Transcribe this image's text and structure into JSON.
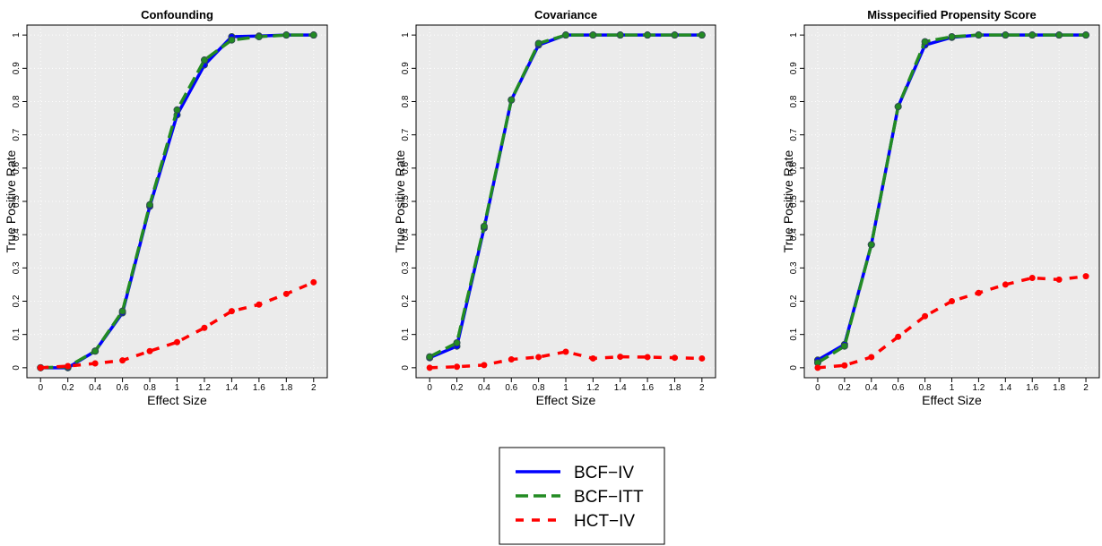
{
  "chart_data": [
    {
      "type": "line",
      "title": "Confounding",
      "xlabel": "Effect Size",
      "ylabel": "True Positive Rate",
      "x": [
        0,
        0.2,
        0.4,
        0.6,
        0.8,
        1,
        1.2,
        1.4,
        1.6,
        1.8,
        2
      ],
      "series": [
        {
          "name": "BCF−IV",
          "color": "#0000ff",
          "linestyle": "solid",
          "values": [
            0,
            0,
            0.05,
            0.165,
            0.485,
            0.76,
            0.91,
            0.995,
            0.997,
            1,
            1
          ]
        },
        {
          "name": "BCF−ITT",
          "color": "#228b22",
          "linestyle": "longdash",
          "values": [
            0,
            0.003,
            0.05,
            0.17,
            0.49,
            0.775,
            0.925,
            0.985,
            0.995,
            1,
            1
          ]
        },
        {
          "name": "HCT−IV",
          "color": "#ff0000",
          "linestyle": "dashed",
          "values": [
            0,
            0.005,
            0.013,
            0.022,
            0.05,
            0.077,
            0.12,
            0.17,
            0.19,
            0.222,
            0.257
          ]
        }
      ],
      "xlim": [
        -0.1,
        2.1
      ],
      "ylim": [
        -0.03,
        1.03
      ],
      "xticks": [
        0,
        0.2,
        0.4,
        0.6,
        0.8,
        1,
        1.2,
        1.4,
        1.6,
        1.8,
        2
      ],
      "yticks": [
        0,
        0.1,
        0.2,
        0.3,
        0.4,
        0.5,
        0.6,
        0.7,
        0.8,
        0.9,
        1
      ],
      "grid": true
    },
    {
      "type": "line",
      "title": "Covariance",
      "xlabel": "Effect Size",
      "ylabel": "True Positive Rate",
      "x": [
        0,
        0.2,
        0.4,
        0.6,
        0.8,
        1,
        1.2,
        1.4,
        1.6,
        1.8,
        2
      ],
      "series": [
        {
          "color": "#0000ff",
          "linestyle": "solid",
          "values": [
            0.03,
            0.065,
            0.42,
            0.805,
            0.97,
            1,
            1,
            1,
            1,
            1,
            1
          ]
        },
        {
          "color": "#228b22",
          "linestyle": "longdash",
          "values": [
            0.033,
            0.075,
            0.425,
            0.805,
            0.975,
            1,
            1,
            1,
            1,
            1,
            1
          ]
        },
        {
          "color": "#ff0000",
          "linestyle": "dashed",
          "values": [
            0,
            0.003,
            0.008,
            0.025,
            0.032,
            0.048,
            0.028,
            0.033,
            0.032,
            0.03,
            0.028
          ]
        }
      ],
      "xlim": [
        -0.1,
        2.1
      ],
      "ylim": [
        -0.03,
        1.03
      ],
      "xticks": [
        0,
        0.2,
        0.4,
        0.6,
        0.8,
        1,
        1.2,
        1.4,
        1.6,
        1.8,
        2
      ],
      "yticks": [
        0,
        0.1,
        0.2,
        0.3,
        0.4,
        0.5,
        0.6,
        0.7,
        0.8,
        0.9,
        1
      ],
      "grid": true
    },
    {
      "type": "line",
      "title": "Misspecified Propensity Score",
      "xlabel": "Effect Size",
      "ylabel": "True Positive Rate",
      "x": [
        0,
        0.2,
        0.4,
        0.6,
        0.8,
        1,
        1.2,
        1.4,
        1.6,
        1.8,
        2
      ],
      "series": [
        {
          "color": "#0000ff",
          "linestyle": "solid",
          "values": [
            0.023,
            0.07,
            0.37,
            0.785,
            0.97,
            0.993,
            1,
            1,
            1,
            1,
            1
          ]
        },
        {
          "color": "#228b22",
          "linestyle": "longdash",
          "values": [
            0.015,
            0.065,
            0.37,
            0.785,
            0.98,
            0.995,
            1,
            1,
            1,
            1,
            1
          ]
        },
        {
          "color": "#ff0000",
          "linestyle": "dashed",
          "values": [
            0,
            0.007,
            0.032,
            0.093,
            0.155,
            0.2,
            0.225,
            0.25,
            0.27,
            0.265,
            0.275
          ]
        }
      ],
      "xlim": [
        -0.1,
        2.1
      ],
      "ylim": [
        -0.03,
        1.03
      ],
      "xticks": [
        0,
        0.2,
        0.4,
        0.6,
        0.8,
        1,
        1.2,
        1.4,
        1.6,
        1.8,
        2
      ],
      "yticks": [
        0,
        0.1,
        0.2,
        0.3,
        0.4,
        0.5,
        0.6,
        0.7,
        0.8,
        0.9,
        1
      ],
      "grid": true
    }
  ]
}
